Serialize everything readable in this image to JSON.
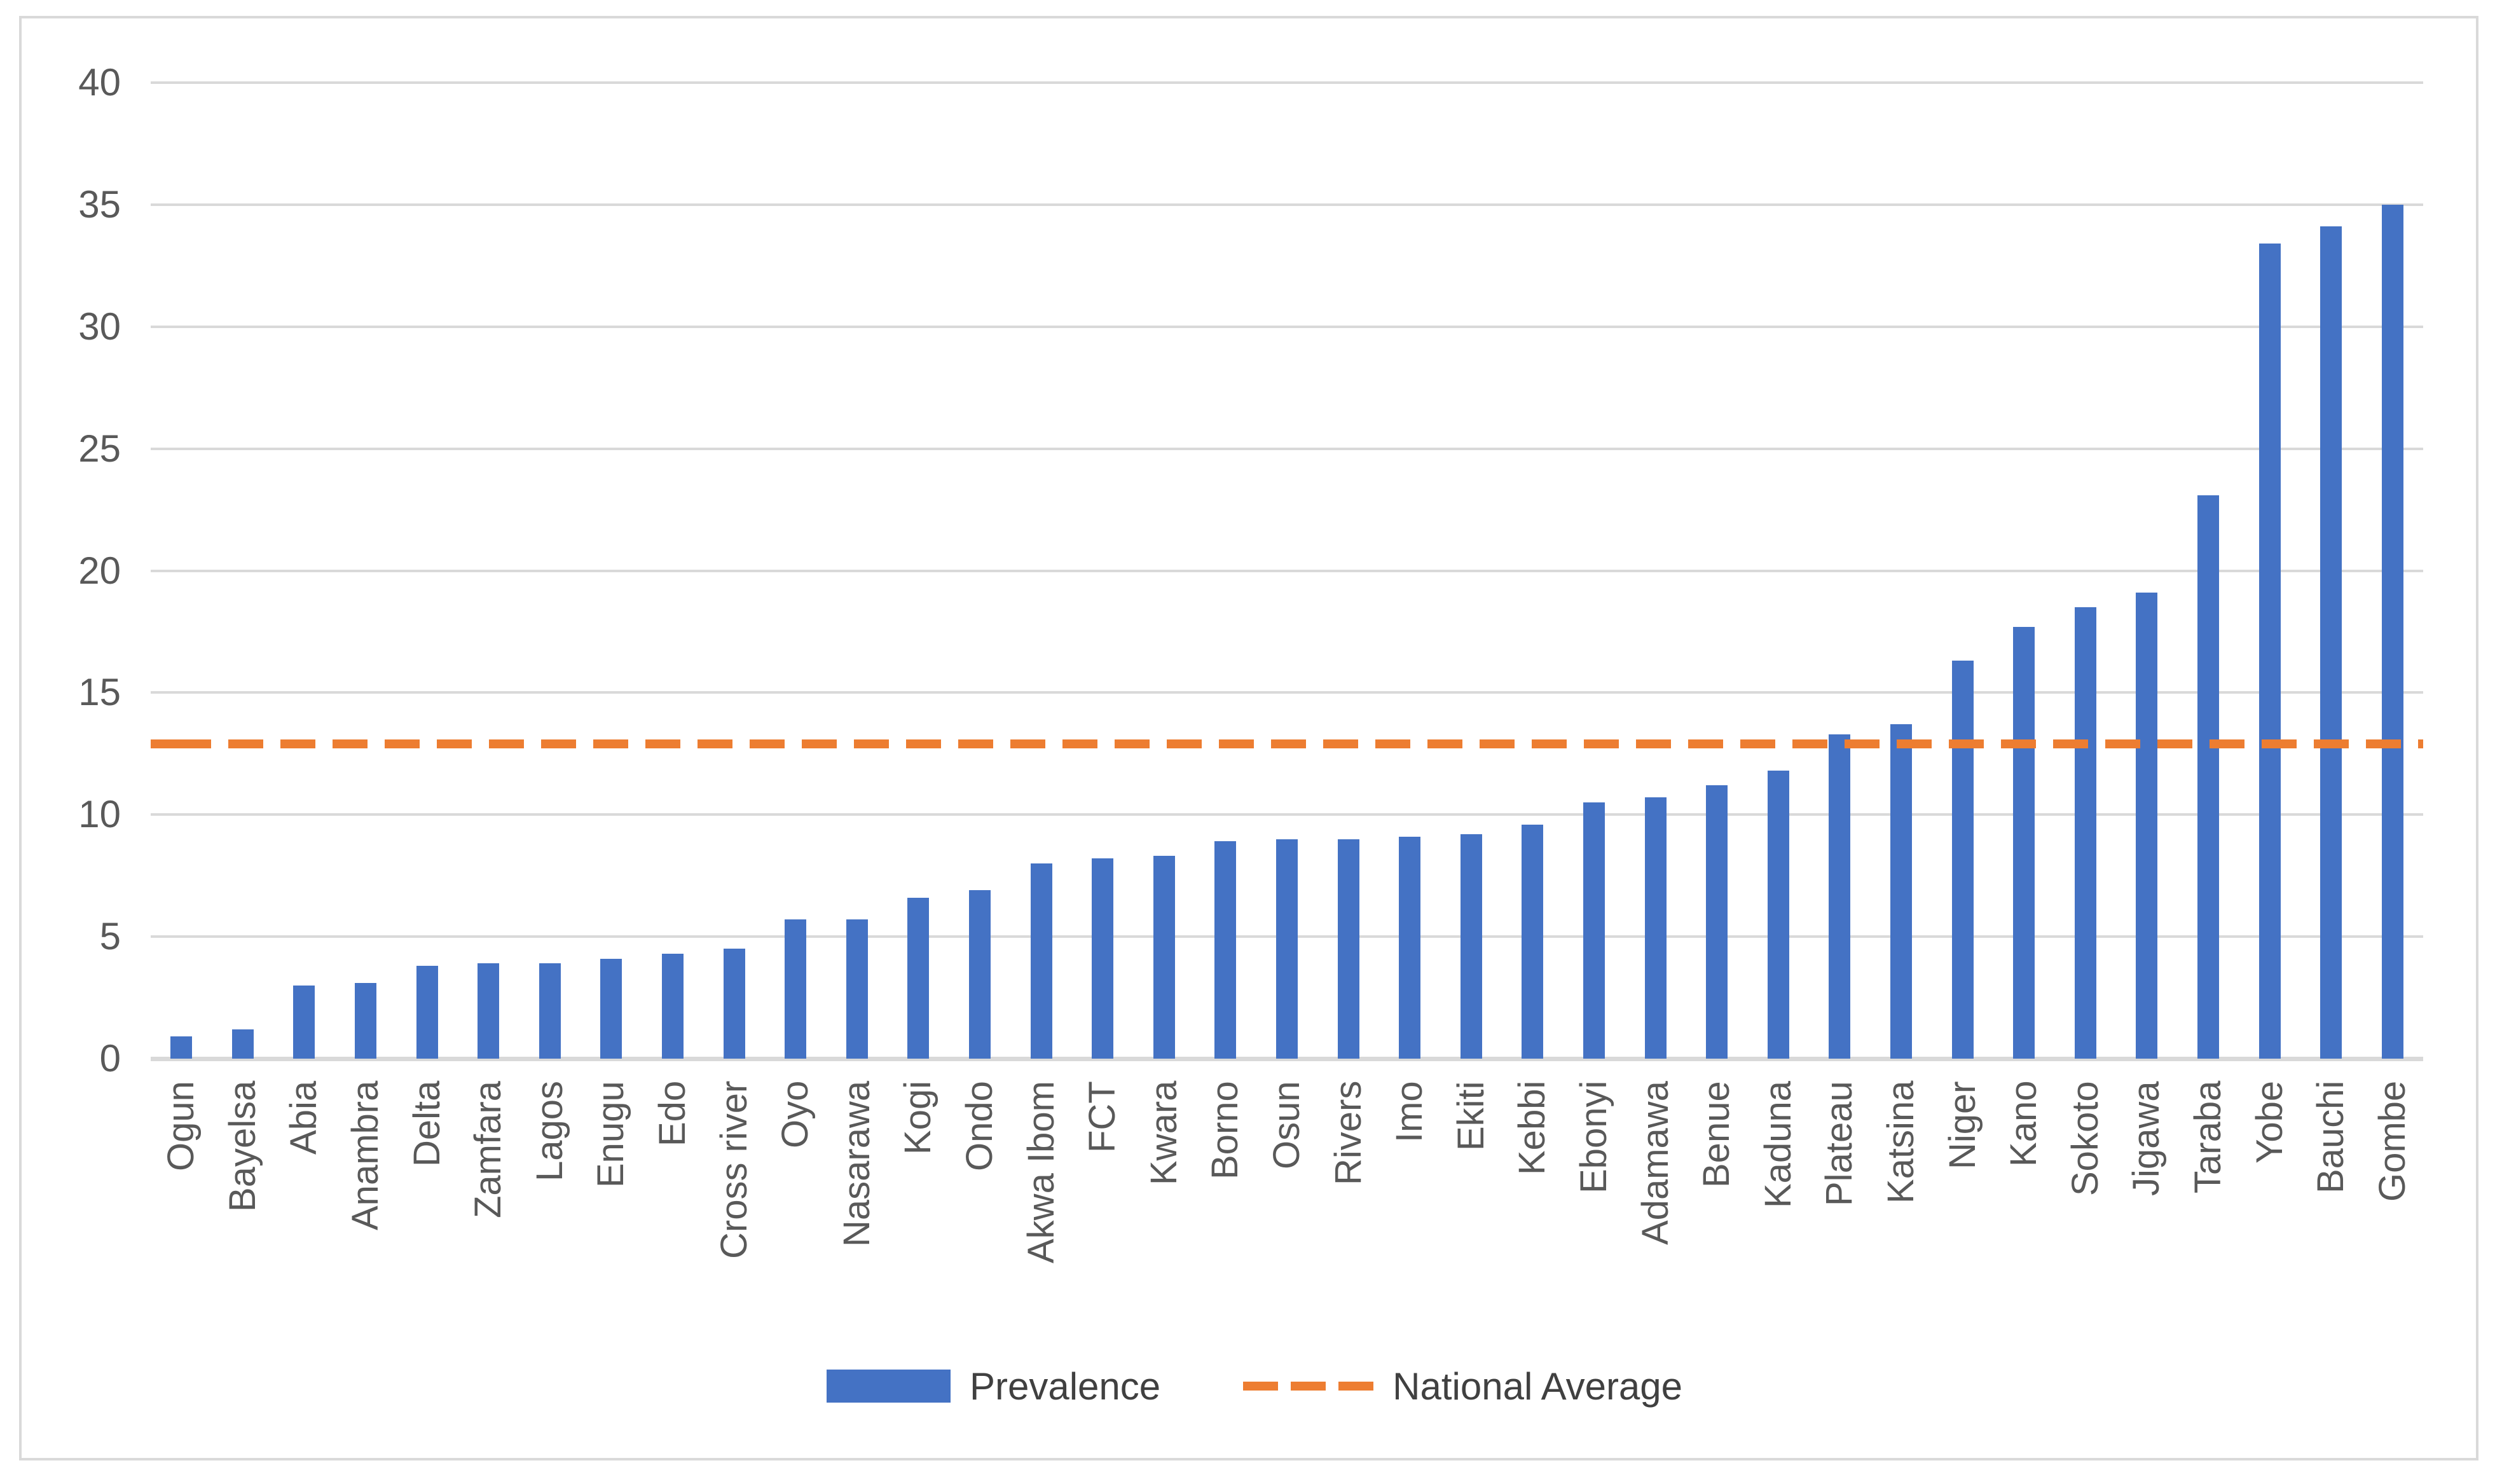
{
  "chart_data": {
    "type": "bar",
    "title": "",
    "xlabel": "",
    "ylabel": "",
    "categories": [
      "Ogun",
      "Bayelsa",
      "Abia",
      "Anambra",
      "Delta",
      "Zamfara",
      "Lagos",
      "Enugu",
      "Edo",
      "Cross river",
      "Oyo",
      "Nasarawa",
      "Kogi",
      "Ondo",
      "Akwa Ibom",
      "FCT",
      "Kwara",
      "Borno",
      "Osun",
      "Rivers",
      "Imo",
      "Ekiti",
      "Kebbi",
      "Ebonyi",
      "Adamawa",
      "Benue",
      "Kaduna",
      "Plateau",
      "Katsina",
      "Niger",
      "Kano",
      "Sokoto",
      "Jigawa",
      "Taraba",
      "Yobe",
      "Bauchi",
      "Gombe"
    ],
    "series": [
      {
        "name": "Prevalence",
        "type": "bar",
        "color": "#4472c4",
        "values": [
          0.9,
          1.2,
          3.0,
          3.1,
          3.8,
          3.9,
          3.9,
          4.1,
          4.3,
          4.5,
          5.7,
          5.7,
          6.6,
          6.9,
          8.0,
          8.2,
          8.3,
          8.9,
          9.0,
          9.0,
          9.1,
          9.2,
          9.6,
          10.5,
          10.7,
          11.2,
          11.8,
          13.3,
          13.7,
          16.3,
          17.7,
          18.5,
          19.1,
          23.1,
          33.4,
          34.1,
          35.0
        ]
      }
    ],
    "national_average": {
      "name": "National Average",
      "type": "dashed-line",
      "color": "#ed7d31",
      "value": 12.9
    },
    "ylim": [
      0,
      40
    ],
    "yticks": [
      0,
      5,
      10,
      15,
      20,
      25,
      30,
      35,
      40
    ],
    "grid": true,
    "gridline_color": "#d9d9d9",
    "legend_position": "bottom"
  },
  "legend": {
    "prevalence_label": "Prevalence",
    "national_average_label": "National Average"
  },
  "colors": {
    "bar": "#4472c4",
    "average_line": "#ed7d31",
    "gridline": "#d9d9d9",
    "text": "#595959"
  }
}
